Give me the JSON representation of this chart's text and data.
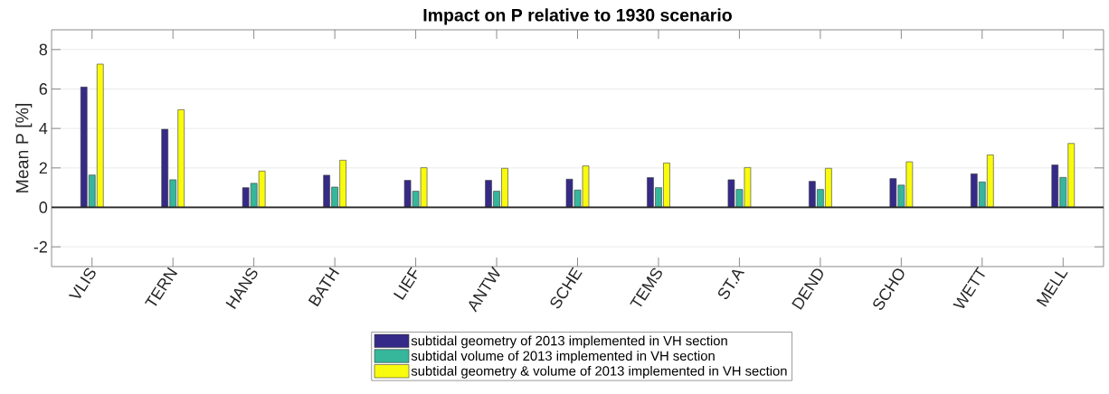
{
  "chart_data": {
    "type": "bar",
    "title": "Impact on P relative to 1930 scenario",
    "ylabel": "Mean P [%]",
    "categories": [
      "VLIS",
      "TERN",
      "HANS",
      "BATH",
      "LIEF",
      "ANTW",
      "SCHE",
      "TEMS",
      "ST.A",
      "DEND",
      "SCHO",
      "WETT",
      "MELL"
    ],
    "ylim": [
      -3,
      9
    ],
    "yticks": [
      -2,
      0,
      2,
      4,
      6,
      8
    ],
    "grid": "y",
    "legend": "bottom",
    "ref_lines": [
      {
        "axis": "y",
        "value": 0,
        "color": "#262626"
      }
    ],
    "series": [
      {
        "name": "subtidal geometry of 2013 implemented in VH section",
        "color": "#352a87",
        "values": [
          6.1,
          3.96,
          1.0,
          1.63,
          1.37,
          1.37,
          1.43,
          1.51,
          1.4,
          1.32,
          1.46,
          1.7,
          2.15
        ]
      },
      {
        "name": "subtidal volume of 2013 implemented in VH section",
        "color": "#36b79b",
        "values": [
          1.64,
          1.4,
          1.22,
          1.03,
          0.82,
          0.82,
          0.88,
          1.0,
          0.91,
          0.91,
          1.13,
          1.29,
          1.52
        ]
      },
      {
        "name": "subtidal geometry & volume of 2013 implemented in VH section",
        "color": "#f9fb0e",
        "values": [
          7.26,
          4.95,
          1.84,
          2.39,
          2.01,
          1.98,
          2.1,
          2.25,
          2.02,
          1.98,
          2.31,
          2.66,
          3.24
        ]
      }
    ]
  }
}
